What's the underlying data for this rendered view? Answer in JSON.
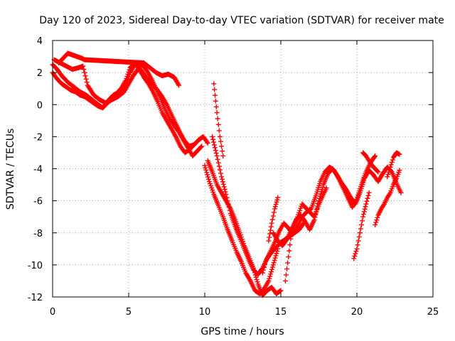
{
  "chart_data": {
    "type": "scatter",
    "title": "Day 120 of 2023, Sidereal Day-to-day VTEC variation (SDTVAR) for receiver mate",
    "xlabel": "GPS time / hours",
    "ylabel": "SDTVAR / TECUs",
    "xlim": [
      0,
      25
    ],
    "ylim": [
      -12,
      4
    ],
    "xticks": [
      "0",
      "5",
      "10",
      "15",
      "20",
      "25"
    ],
    "yticks": [
      "4",
      "2",
      "0",
      "-2",
      "-4",
      "-6",
      "-8",
      "-10",
      "-12"
    ],
    "grid": true,
    "marker": "+",
    "color": "#ff0000",
    "series": [
      {
        "x": [
          0.0,
          0.3,
          0.6,
          1.0,
          1.4,
          1.8,
          2.2,
          2.6,
          3.0,
          3.3,
          3.6,
          4.0,
          4.4,
          4.8,
          5.1,
          5.4,
          5.7,
          6.0,
          6.3,
          6.6,
          6.9,
          7.2,
          7.5,
          7.8,
          8.1,
          8.4,
          8.7,
          9.0,
          9.3,
          9.6,
          9.9,
          10.2
        ],
        "y": [
          2.5,
          2.2,
          1.8,
          1.4,
          1.1,
          0.8,
          0.6,
          0.3,
          0.0,
          -0.2,
          0.2,
          0.6,
          0.8,
          1.2,
          2.0,
          2.5,
          2.3,
          1.9,
          1.5,
          1.2,
          0.9,
          0.5,
          0.0,
          -0.6,
          -1.2,
          -1.8,
          -2.3,
          -2.6,
          -2.5,
          -2.2,
          -2.0,
          -2.4
        ]
      },
      {
        "x": [
          0.0,
          0.3,
          0.6,
          0.9,
          1.2,
          1.5,
          1.8,
          2.1,
          2.4,
          2.7,
          3.0,
          3.3,
          3.6,
          3.9,
          4.2,
          4.5,
          4.8,
          5.1,
          5.4,
          5.7,
          6.0,
          6.3,
          6.6,
          6.9,
          7.2,
          7.5,
          7.8,
          8.1,
          8.4,
          8.7,
          9.0,
          9.3
        ],
        "y": [
          2.0,
          1.6,
          1.3,
          1.1,
          0.9,
          0.8,
          0.6,
          0.5,
          0.3,
          0.1,
          -0.1,
          -0.2,
          0.1,
          0.4,
          0.7,
          1.0,
          1.5,
          2.3,
          2.6,
          2.2,
          1.7,
          1.3,
          0.8,
          0.2,
          -0.5,
          -1.0,
          -1.5,
          -2.0,
          -2.6,
          -3.0,
          -2.8,
          -2.5
        ]
      },
      {
        "x": [
          0.1,
          0.5,
          0.9,
          1.3,
          1.7,
          2.0,
          2.3,
          2.7,
          3.1,
          3.5,
          3.9,
          4.3,
          4.7,
          5.0,
          5.3,
          5.6,
          5.9,
          6.2,
          6.5,
          6.8,
          7.1,
          7.4,
          7.7,
          8.0,
          8.3,
          8.6,
          8.9,
          9.2,
          9.5,
          9.8
        ],
        "y": [
          2.8,
          2.6,
          2.4,
          2.2,
          2.3,
          2.4,
          1.2,
          0.6,
          0.3,
          0.1,
          0.3,
          0.5,
          0.8,
          1.3,
          1.8,
          2.2,
          2.5,
          2.1,
          1.6,
          1.0,
          0.4,
          -0.3,
          -0.9,
          -1.3,
          -1.7,
          -2.2,
          -2.7,
          -3.2,
          -2.9,
          -2.6
        ]
      },
      {
        "x": [
          0.4,
          0.8,
          1.0,
          1.3,
          1.6,
          1.9,
          2.1,
          6.0,
          6.4,
          6.8,
          7.2,
          7.6,
          8.0,
          8.3
        ],
        "y": [
          2.6,
          3.0,
          3.2,
          3.1,
          3.0,
          2.9,
          2.8,
          2.6,
          2.3,
          2.0,
          1.8,
          1.9,
          1.7,
          1.2
        ]
      },
      {
        "x": [
          10.0,
          10.3,
          10.6,
          10.9,
          11.2,
          11.5,
          11.8,
          12.1,
          12.4,
          12.7,
          13.0,
          13.3,
          13.6,
          13.9,
          14.2,
          14.5,
          14.8
        ],
        "y": [
          -3.8,
          -4.8,
          -5.6,
          -6.3,
          -7.0,
          -7.8,
          -8.5,
          -9.2,
          -9.8,
          -10.5,
          -11.0,
          -11.6,
          -11.8,
          -11.5,
          -11.0,
          -10.0,
          -9.0
        ]
      },
      {
        "x": [
          10.2,
          10.5,
          10.8,
          11.1,
          11.4,
          11.7,
          12.0,
          12.3,
          12.6,
          12.9,
          13.2,
          13.5,
          13.8,
          14.1,
          14.4,
          14.7,
          15.0
        ],
        "y": [
          -3.5,
          -4.2,
          -5.0,
          -5.5,
          -6.0,
          -6.5,
          -7.2,
          -8.0,
          -8.8,
          -9.5,
          -10.2,
          -11.2,
          -11.9,
          -11.6,
          -11.4,
          -11.8,
          -11.6
        ]
      },
      {
        "x": [
          10.5,
          10.8,
          11.1,
          11.4,
          11.7,
          12.0,
          12.3,
          12.6,
          12.9,
          13.2,
          13.5,
          13.8,
          14.1,
          14.4,
          14.7,
          15.0,
          15.3,
          15.6,
          15.9,
          16.2,
          16.5
        ],
        "y": [
          -2.0,
          -3.2,
          -4.5,
          -5.6,
          -6.8,
          -7.6,
          -8.3,
          -9.0,
          -9.7,
          -10.3,
          -10.6,
          -10.2,
          -9.6,
          -9.2,
          -8.9,
          -8.6,
          -8.4,
          -8.2,
          -8.0,
          -7.8,
          -7.4
        ]
      },
      {
        "x": [
          10.6,
          10.8,
          11.0,
          11.2
        ],
        "y": [
          1.3,
          -0.5,
          -2.0,
          -3.2
        ]
      },
      {
        "x": [
          14.5,
          14.8,
          15.1,
          15.4,
          15.7,
          16.0,
          16.3,
          16.6,
          16.9,
          17.2,
          17.5,
          17.8,
          18.1,
          18.4,
          18.7,
          19.0,
          19.3,
          19.6,
          19.9,
          20.2,
          20.5,
          20.8,
          21.1,
          21.4,
          21.7,
          22.0,
          22.3,
          22.6,
          22.9
        ],
        "y": [
          -8.0,
          -8.5,
          -8.8,
          -8.4,
          -7.8,
          -7.2,
          -6.9,
          -7.3,
          -7.8,
          -7.2,
          -6.0,
          -5.0,
          -4.3,
          -4.0,
          -4.4,
          -4.9,
          -5.3,
          -5.8,
          -6.2,
          -5.5,
          -4.6,
          -4.1,
          -4.4,
          -4.8,
          -4.3,
          -3.9,
          -4.2,
          -4.9,
          -5.5
        ]
      },
      {
        "x": [
          13.8,
          14.0,
          14.3,
          14.6,
          14.9,
          15.2,
          15.5,
          15.8,
          16.1,
          16.4,
          16.7,
          17.0,
          17.3,
          17.6,
          17.9,
          18.2,
          18.5,
          18.8,
          19.1,
          19.4,
          19.7,
          20.0,
          20.3,
          20.6,
          20.9,
          21.2
        ],
        "y": [
          -10.5,
          -9.8,
          -9.2,
          -8.6,
          -7.9,
          -7.4,
          -7.7,
          -8.1,
          -7.6,
          -7.0,
          -6.7,
          -6.5,
          -5.7,
          -4.8,
          -4.2,
          -3.9,
          -4.1,
          -4.6,
          -5.2,
          -5.8,
          -6.4,
          -5.9,
          -5.0,
          -4.2,
          -3.6,
          -3.2
        ]
      },
      {
        "x": [
          15.3,
          15.5,
          15.7,
          16.1,
          16.4,
          16.8,
          17.2,
          17.6,
          18.0
        ],
        "y": [
          -11.0,
          -9.5,
          -8.0,
          -7.0,
          -6.2,
          -6.6,
          -7.0,
          -6.0,
          -5.2
        ]
      },
      {
        "x": [
          14.2,
          14.4,
          14.6,
          14.8
        ],
        "y": [
          -8.5,
          -7.4,
          -6.5,
          -5.8
        ]
      },
      {
        "x": [
          19.8,
          20.0,
          20.2,
          20.4,
          20.6,
          20.8
        ],
        "y": [
          -9.6,
          -9.0,
          -8.0,
          -7.0,
          -6.2,
          -5.5
        ]
      },
      {
        "x": [
          20.4,
          20.6,
          20.8,
          21.0,
          21.2,
          21.4
        ],
        "y": [
          -3.0,
          -3.2,
          -3.5,
          -3.8,
          -4.0,
          -4.2
        ]
      },
      {
        "x": [
          21.2,
          21.4,
          21.6,
          21.8,
          22.0,
          22.2,
          22.4,
          22.6,
          22.8
        ],
        "y": [
          -7.5,
          -6.9,
          -6.5,
          -6.2,
          -5.8,
          -5.5,
          -5.0,
          -4.6,
          -4.1
        ]
      },
      {
        "x": [
          22.0,
          22.2,
          22.4,
          22.6,
          22.8
        ],
        "y": [
          -4.5,
          -3.9,
          -3.3,
          -3.0,
          -3.1
        ]
      }
    ]
  }
}
